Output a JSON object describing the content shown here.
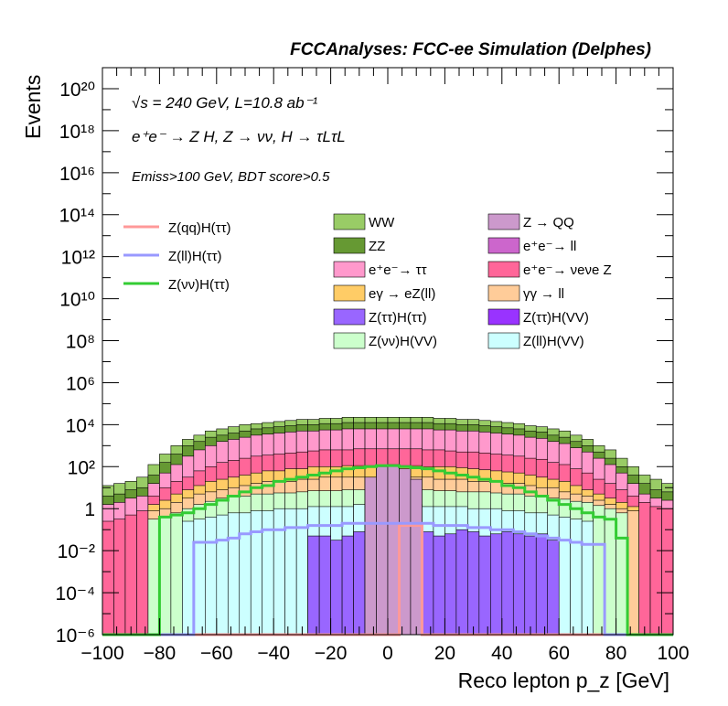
{
  "header": {
    "title": "FCCAnalyses: FCC-ee Simulation (Delphes)"
  },
  "annotations": {
    "energy": "√s = 240 GeV, L=10.8 ab⁻¹",
    "process": "e⁺e⁻ → Z H, Z → νν, H → τLτL",
    "cuts": "Emiss>100 GeV, BDT score>0.5"
  },
  "colors": {
    "WW": "#99cc66",
    "ZZ": "#669933",
    "ee_tautau": "#ff99cc",
    "egamma_eZll": "#ffcc66",
    "Ztautau_Htautau": "#9966ff",
    "Znunu_HVV": "#ccffcc",
    "Z_QQ": "#cc99cc",
    "ee_ll": "#cc66cc",
    "ee_nunuZ": "#ff6699",
    "gammagamma_ll": "#ffcc99",
    "Ztautau_HVV": "#9933ff",
    "Zll_HVV": "#ccffff",
    "Zqq_Htautau_line": "#ff9999",
    "Zll_Htautau_line": "#9999ff",
    "Znunu_Htautau_line": "#33cc33"
  },
  "legend": {
    "lines": [
      "Z(qq)H(ττ)",
      "Z(ll)H(ττ)",
      "Z(νν)H(ττ)"
    ],
    "col1": [
      "WW",
      "ZZ",
      "e⁺e⁻→ ττ",
      "eγ → eZ(ll)",
      "Z(ττ)H(ττ)",
      "Z(νν)H(VV)"
    ],
    "col2": [
      "Z → QQ",
      "e⁺e⁻→ ll",
      "e⁺e⁻→ νeνe Z",
      "γγ → ll",
      "Z(ττ)H(VV)",
      "Z(ll)H(VV)"
    ]
  },
  "chart_data": {
    "type": "area",
    "title": "FCCAnalyses: FCC-ee Simulation (Delphes)",
    "xlabel": "Reco lepton p_z [GeV]",
    "ylabel": "Events",
    "xlim": [
      -100,
      100
    ],
    "ylim": [
      1e-06,
      1e+21
    ],
    "ylog": true,
    "xticks": [
      "−100",
      "−80",
      "−60",
      "−40",
      "−20",
      "0",
      "20",
      "40",
      "60",
      "80",
      "100"
    ],
    "yticks": [
      "10⁻⁶",
      "10⁻⁴",
      "10⁻²",
      "1",
      "10²",
      "10⁴",
      "10⁶",
      "10⁸",
      "10¹⁰",
      "10¹²",
      "10¹⁴",
      "10¹⁶",
      "10¹⁸",
      "10²⁰"
    ],
    "bins": 50,
    "stack_totals_log10": [
      {
        "name": "Z(ll)H(VV)",
        "logs": [
          -6,
          -6,
          -6,
          -6,
          -6,
          -6,
          -6,
          -0.6,
          -0.5,
          -0.4,
          -0.3,
          -0.2,
          -0.2,
          -0.1,
          -0.1,
          0,
          0,
          0,
          0.1,
          0.1,
          0.1,
          0.1,
          0.2,
          0.2,
          0.2,
          0.2,
          0.2,
          0.2,
          0.1,
          0.1,
          0.1,
          0.1,
          0,
          0,
          0,
          -0.1,
          -0.1,
          -0.2,
          -0.2,
          -0.3,
          -0.4,
          -0.5,
          -0.6,
          -6,
          -6,
          -6,
          -6,
          -6,
          -6,
          -6
        ]
      },
      {
        "name": "Z(νν)H(VV)",
        "logs": [
          -6,
          -6,
          -6,
          -6,
          -0.5,
          -0.4,
          -0.2,
          0,
          0.2,
          0.35,
          0.5,
          0.55,
          0.6,
          0.7,
          0.7,
          0.75,
          0.75,
          0.8,
          0.85,
          0.85,
          0.85,
          0.9,
          0.9,
          0.9,
          0.9,
          0.9,
          0.9,
          0.9,
          0.9,
          0.85,
          0.85,
          0.8,
          0.8,
          0.8,
          0.75,
          0.7,
          0.7,
          0.6,
          0.6,
          0.5,
          0.45,
          0.35,
          0.3,
          0.15,
          0,
          -0.2,
          -6,
          -6,
          -6,
          -6
        ]
      },
      {
        "name": "γγ → ll",
        "logs": [
          -6,
          -6,
          -6,
          -6,
          -0.1,
          0,
          0.3,
          0.5,
          0.7,
          0.8,
          0.9,
          1,
          1.1,
          1.2,
          1.3,
          1.3,
          1.3,
          1.4,
          1.4,
          1.5,
          1.5,
          1.5,
          1.5,
          1.5,
          1.5,
          1.5,
          1.5,
          1.5,
          1.5,
          1.4,
          1.4,
          1.4,
          1.3,
          1.3,
          1.3,
          1.2,
          1.2,
          1.1,
          1,
          1,
          0.8,
          0.7,
          0.6,
          0.4,
          0.2,
          0,
          -0.1,
          -6,
          -6,
          -6
        ]
      },
      {
        "name": "eγ → eZ(ll)",
        "logs": [
          -6,
          -6,
          -6,
          -6,
          0.2,
          0.4,
          0.7,
          0.9,
          1.1,
          1.3,
          1.4,
          1.5,
          1.6,
          1.7,
          1.8,
          1.8,
          1.9,
          1.9,
          2,
          2,
          2,
          2.05,
          2.05,
          2.05,
          2.05,
          2.05,
          2.05,
          2.05,
          2,
          2,
          2,
          1.95,
          1.9,
          1.85,
          1.8,
          1.75,
          1.7,
          1.6,
          1.5,
          1.4,
          1.3,
          1.1,
          0.9,
          0.7,
          0.5,
          0.3,
          0.1,
          -6,
          -6,
          -6
        ]
      },
      {
        "name": "e⁺e⁻→ νeνe Z",
        "logs": [
          -0.6,
          -0.5,
          -0.3,
          -0.1,
          0.6,
          1,
          1.3,
          1.5,
          1.8,
          2,
          2.2,
          2.3,
          2.4,
          2.5,
          2.55,
          2.6,
          2.65,
          2.7,
          2.75,
          2.8,
          2.8,
          2.8,
          2.85,
          2.85,
          2.85,
          2.85,
          2.85,
          2.85,
          2.8,
          2.8,
          2.75,
          2.7,
          2.7,
          2.65,
          2.6,
          2.55,
          2.5,
          2.4,
          2.35,
          2.2,
          2.1,
          1.9,
          1.7,
          1.4,
          1.2,
          0.9,
          0.6,
          0.3,
          0.1,
          0
        ]
      },
      {
        "name": "e⁺e⁻→ ττ",
        "logs": [
          0.2,
          0.3,
          0.5,
          0.6,
          1.2,
          1.7,
          2.1,
          2.5,
          2.8,
          3,
          3.2,
          3.3,
          3.4,
          3.5,
          3.55,
          3.6,
          3.65,
          3.7,
          3.7,
          3.75,
          3.75,
          3.8,
          3.8,
          3.8,
          3.8,
          3.8,
          3.8,
          3.8,
          3.8,
          3.75,
          3.75,
          3.7,
          3.7,
          3.65,
          3.6,
          3.55,
          3.5,
          3.4,
          3.35,
          3.2,
          3.1,
          2.9,
          2.7,
          2.4,
          2.1,
          1.7,
          1.2,
          0.7,
          0.5,
          0.4
        ]
      },
      {
        "name": "ZZ",
        "logs": [
          0.6,
          0.7,
          0.9,
          1,
          1.6,
          2.2,
          2.6,
          3,
          3.2,
          3.4,
          3.5,
          3.6,
          3.7,
          3.8,
          3.85,
          3.9,
          3.95,
          4,
          4,
          4.05,
          4.05,
          4.1,
          4.1,
          4.1,
          4.1,
          4.1,
          4.1,
          4.1,
          4.1,
          4.05,
          4.05,
          4,
          4,
          3.95,
          3.9,
          3.85,
          3.8,
          3.7,
          3.65,
          3.5,
          3.4,
          3.2,
          3,
          2.7,
          2.4,
          2,
          1.6,
          1.2,
          0.9,
          0.8
        ]
      },
      {
        "name": "WW",
        "logs": [
          1.1,
          1.2,
          1.3,
          1.5,
          2.1,
          2.6,
          3.0,
          3.3,
          3.5,
          3.7,
          3.8,
          3.9,
          4.0,
          4.05,
          4.1,
          4.15,
          4.2,
          4.25,
          4.25,
          4.3,
          4.3,
          4.35,
          4.35,
          4.35,
          4.35,
          4.35,
          4.35,
          4.35,
          4.35,
          4.3,
          4.3,
          4.25,
          4.25,
          4.2,
          4.15,
          4.1,
          4.05,
          3.95,
          3.9,
          3.8,
          3.7,
          3.5,
          3.3,
          3.0,
          2.8,
          2.4,
          2.0,
          1.6,
          1.4,
          1.2
        ]
      }
    ],
    "series": [
      {
        "name": "Z(ττ)H(ττ)",
        "logs": [
          -6,
          -6,
          -6,
          -6,
          -6,
          -6,
          -6,
          -6,
          -6,
          -6,
          -6,
          -6,
          -6,
          -6,
          -6,
          -6,
          -6,
          -6,
          -1.3,
          -1.3,
          -1.5,
          -1.3,
          -1.1,
          -1.5,
          -1.3,
          -1.1,
          -1.3,
          -1.2,
          -1.1,
          -1.3,
          -1.2,
          -1.0,
          -1.1,
          -1.3,
          -1.2,
          -1.1,
          -1.2,
          -1.3,
          -1.2,
          -1.5,
          -6,
          -6,
          -6,
          -6,
          -6,
          -6,
          -6,
          -6,
          -6,
          -6
        ]
      },
      {
        "name": "Z(ττ)H(VV)",
        "logs": [
          -6,
          -6,
          -6,
          -6,
          -6,
          -6,
          -6,
          -6,
          -6,
          -6,
          -6,
          -6,
          -6,
          -6,
          -6,
          -6,
          -6,
          -6,
          -6,
          -6,
          -6,
          -6,
          -6,
          -6,
          -6,
          -6,
          -6,
          -6,
          -6,
          -6,
          -6,
          -6,
          -6,
          -6,
          -6,
          -6,
          -6,
          -6,
          -6,
          -6,
          -6,
          -6,
          -6,
          -6,
          -6,
          -6,
          -6,
          -6,
          -6,
          -6
        ]
      },
      {
        "name": "Z → QQ",
        "logs": [
          -6,
          -6,
          -6,
          -6,
          -6,
          -6,
          -6,
          -6,
          -6,
          -6,
          -6,
          -6,
          -6,
          -6,
          -6,
          -6,
          -6,
          -6,
          -6,
          -6,
          -6,
          -6,
          -6,
          1.5,
          2.0,
          2.1,
          1.9,
          1.4,
          -6,
          -6,
          -6,
          -6,
          -6,
          -6,
          -6,
          -6,
          -6,
          -6,
          -6,
          -6,
          -6,
          -6,
          -6,
          -6,
          -6,
          -6,
          -6,
          -6,
          -6,
          -6
        ]
      }
    ],
    "lines": [
      {
        "name": "Z(qq)H(ττ)",
        "logs": [
          -6,
          -6,
          -6,
          -6,
          -6,
          -6,
          -6,
          -6,
          -6,
          -6,
          -6,
          -6,
          -6,
          -6,
          -6,
          -6,
          -6,
          -6,
          -6,
          -6,
          -6,
          -6,
          -6,
          -6,
          -6,
          -6,
          -0.8,
          -0.8,
          -6,
          -6,
          -6,
          -6,
          -6,
          -6,
          -6,
          -6,
          -6,
          -6,
          -6,
          -6,
          -6,
          -6,
          -6,
          -6,
          -6,
          -6,
          -6,
          -6,
          -6,
          -6
        ]
      },
      {
        "name": "Z(ll)H(ττ)",
        "logs": [
          -6,
          -6,
          -6,
          -6,
          -6,
          -6,
          -6,
          -6,
          -1.6,
          -1.6,
          -1.5,
          -1.4,
          -1.2,
          -1.1,
          -1.0,
          -1.0,
          -0.9,
          -0.9,
          -0.8,
          -0.8,
          -0.8,
          -0.7,
          -0.7,
          -0.7,
          -0.7,
          -0.7,
          -0.7,
          -0.7,
          -0.7,
          -0.8,
          -0.8,
          -0.8,
          -0.9,
          -0.9,
          -1.0,
          -1.0,
          -1.1,
          -1.2,
          -1.3,
          -1.4,
          -1.5,
          -1.6,
          -1.7,
          -1.7,
          -6,
          -6,
          -6,
          -6,
          -6,
          -6
        ]
      },
      {
        "name": "Z(νν)H(ττ)",
        "logs": [
          -6,
          -6,
          -6,
          -6,
          -6,
          -0.4,
          -0.3,
          -0.2,
          0,
          0.2,
          0.4,
          0.6,
          0.8,
          1,
          1.1,
          1.3,
          1.4,
          1.5,
          1.6,
          1.7,
          1.8,
          1.9,
          1.95,
          2,
          2.05,
          2.05,
          2,
          1.95,
          1.9,
          1.8,
          1.7,
          1.6,
          1.5,
          1.4,
          1.3,
          1.1,
          1,
          0.8,
          0.6,
          0.4,
          0.2,
          0,
          -0.2,
          -0.4,
          -0.5,
          -1.4,
          -6,
          -6,
          -6,
          -6
        ]
      }
    ]
  }
}
